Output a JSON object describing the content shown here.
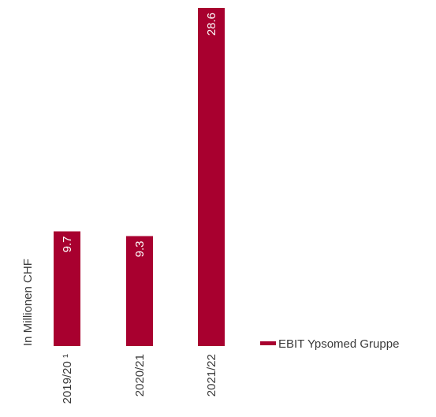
{
  "chart_data": {
    "type": "bar",
    "orientation": "vertical",
    "ylabel": "In Millionen CHF",
    "categories": [
      "2019/20 ¹",
      "2020/21",
      "2021/22"
    ],
    "series": [
      {
        "name": "EBIT Ypsomed Gruppe",
        "values": [
          9.7,
          9.3,
          28.6
        ],
        "color": "#a8002f"
      }
    ],
    "value_labels": [
      "9.7",
      "9.3",
      "28.6"
    ],
    "ylim": [
      0,
      28.6
    ],
    "grid": false,
    "legend_position": "bottom-right"
  }
}
